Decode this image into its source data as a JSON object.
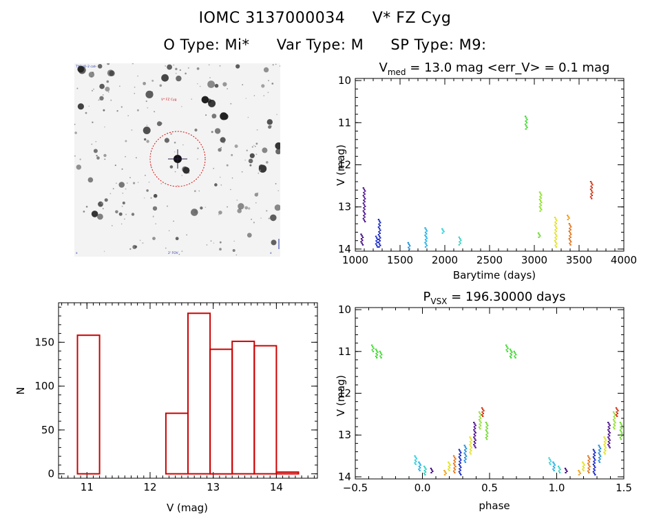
{
  "header": {
    "star_id": "IOMC 3137000034",
    "star_name": "V* FZ Cyg",
    "o_type": "O Type: Mi*",
    "var_type": "Var Type: M",
    "sp_type": "SP Type: M9:"
  },
  "image_panel": {
    "top_left_label": "TYCHO-2 cat",
    "target_label": "V* FZ Cyg",
    "bottom_left_label": "x",
    "bottom_center_label": "2' FOV",
    "bottom_right_label": "x"
  },
  "colors": {
    "hist": "#cc0000",
    "circle": "#d01010",
    "cross": "#2a1a4a"
  },
  "chart_data": [
    {
      "type": "scatter",
      "id": "lightcurve",
      "title_main": "V",
      "title_sub": "med",
      "title_rest": " = 13.0 mag <err_V> = 0.1 mag",
      "xlabel": "Barytime (days)",
      "ylabel": "V (mag)",
      "xlim": [
        1000,
        4000
      ],
      "ylim": [
        14.05,
        9.95
      ],
      "xticks": [
        "1000",
        "1500",
        "2000",
        "2500",
        "3000",
        "3500",
        "4000"
      ],
      "yticks": [
        "10",
        "11",
        "12",
        "13",
        "14"
      ],
      "groups": [
        {
          "x": 1075,
          "y1": 13.65,
          "y2": 13.9,
          "color": "#3a007a"
        },
        {
          "x": 1100,
          "y1": 12.55,
          "y2": 13.35,
          "color": "#4a0d8a"
        },
        {
          "x": 1240,
          "y1": 13.7,
          "y2": 13.95,
          "color": "#1a28c8"
        },
        {
          "x": 1270,
          "y1": 13.3,
          "y2": 13.95,
          "color": "#1020c0"
        },
        {
          "x": 1600,
          "y1": 13.85,
          "y2": 14.0,
          "color": "#1a8ad8"
        },
        {
          "x": 1790,
          "y1": 13.5,
          "y2": 13.95,
          "color": "#20b0e8"
        },
        {
          "x": 1980,
          "y1": 13.52,
          "y2": 13.62,
          "color": "#30d0d8"
        },
        {
          "x": 2170,
          "y1": 13.72,
          "y2": 13.9,
          "color": "#30d0c0"
        },
        {
          "x": 2910,
          "y1": 10.85,
          "y2": 11.15,
          "color": "#40d830"
        },
        {
          "x": 3055,
          "y1": 13.62,
          "y2": 13.72,
          "color": "#70d830"
        },
        {
          "x": 3070,
          "y1": 12.65,
          "y2": 13.1,
          "color": "#90e030"
        },
        {
          "x": 3240,
          "y1": 13.25,
          "y2": 13.95,
          "color": "#e0e020"
        },
        {
          "x": 3380,
          "y1": 13.2,
          "y2": 13.3,
          "color": "#f0a020"
        },
        {
          "x": 3400,
          "y1": 13.4,
          "y2": 13.9,
          "color": "#e07018"
        },
        {
          "x": 3640,
          "y1": 12.4,
          "y2": 12.8,
          "color": "#d03010"
        }
      ]
    },
    {
      "type": "bar",
      "id": "histogram",
      "xlabel": "V (mag)",
      "ylabel": "N",
      "xlim": [
        10.55,
        14.65
      ],
      "ylim": [
        -5,
        195
      ],
      "xticks": [
        "11",
        "12",
        "13",
        "14"
      ],
      "yticks": [
        "0",
        "50",
        "100",
        "150"
      ],
      "bins": [
        {
          "left": 10.85,
          "right": 11.2,
          "value": 158
        },
        {
          "left": 11.2,
          "right": 11.55,
          "value": 0
        },
        {
          "left": 11.55,
          "right": 11.9,
          "value": 0
        },
        {
          "left": 11.9,
          "right": 12.25,
          "value": 0
        },
        {
          "left": 12.25,
          "right": 12.6,
          "value": 69
        },
        {
          "left": 12.6,
          "right": 12.95,
          "value": 183
        },
        {
          "left": 12.95,
          "right": 13.3,
          "value": 142
        },
        {
          "left": 13.3,
          "right": 13.65,
          "value": 151
        },
        {
          "left": 13.65,
          "right": 14.0,
          "value": 146
        },
        {
          "left": 14.0,
          "right": 14.35,
          "value": 2
        }
      ]
    },
    {
      "type": "scatter",
      "id": "phased",
      "title_main": "P",
      "title_sub": "VSX",
      "title_rest": " = 196.30000 days",
      "xlabel": "phase",
      "ylabel": "V (mag)",
      "xlim": [
        -0.5,
        1.5
      ],
      "ylim": [
        14.05,
        9.95
      ],
      "xticks": [
        "−0.5",
        "0.0",
        "0.5",
        "1.0",
        "1.5"
      ],
      "yticks": [
        "10",
        "11",
        "12",
        "13",
        "14"
      ],
      "groups": [
        {
          "x": -0.37,
          "y1": 10.85,
          "y2": 11.0,
          "color": "#40d830"
        },
        {
          "x": -0.34,
          "y1": 10.95,
          "y2": 11.15,
          "color": "#40d830"
        },
        {
          "x": -0.31,
          "y1": 11.0,
          "y2": 11.15,
          "color": "#40d830"
        },
        {
          "x": -0.05,
          "y1": 13.5,
          "y2": 13.7,
          "color": "#30d0d8"
        },
        {
          "x": -0.02,
          "y1": 13.65,
          "y2": 13.85,
          "color": "#20b0e8"
        },
        {
          "x": 0.02,
          "y1": 13.75,
          "y2": 13.95,
          "color": "#30d0c0"
        },
        {
          "x": 0.07,
          "y1": 13.8,
          "y2": 13.9,
          "color": "#3a007a"
        },
        {
          "x": 0.17,
          "y1": 13.85,
          "y2": 13.95,
          "color": "#f0a020"
        },
        {
          "x": 0.2,
          "y1": 13.65,
          "y2": 13.85,
          "color": "#e0e020"
        },
        {
          "x": 0.24,
          "y1": 13.5,
          "y2": 13.9,
          "color": "#e07018"
        },
        {
          "x": 0.28,
          "y1": 13.35,
          "y2": 13.95,
          "color": "#1020c0"
        },
        {
          "x": 0.32,
          "y1": 13.25,
          "y2": 13.65,
          "color": "#1a8ad8"
        },
        {
          "x": 0.36,
          "y1": 13.05,
          "y2": 13.45,
          "color": "#e0e020"
        },
        {
          "x": 0.39,
          "y1": 12.7,
          "y2": 13.3,
          "color": "#4a0d8a"
        },
        {
          "x": 0.43,
          "y1": 12.45,
          "y2": 12.85,
          "color": "#90e030"
        },
        {
          "x": 0.45,
          "y1": 12.35,
          "y2": 12.55,
          "color": "#d03010"
        },
        {
          "x": 0.48,
          "y1": 12.7,
          "y2": 13.1,
          "color": "#70d830"
        },
        {
          "x": 0.63,
          "y1": 10.85,
          "y2": 11.0,
          "color": "#40d830"
        },
        {
          "x": 0.66,
          "y1": 10.95,
          "y2": 11.15,
          "color": "#40d830"
        },
        {
          "x": 0.69,
          "y1": 11.0,
          "y2": 11.15,
          "color": "#40d830"
        },
        {
          "x": 0.95,
          "y1": 13.55,
          "y2": 13.7,
          "color": "#30d0d8"
        },
        {
          "x": 0.98,
          "y1": 13.65,
          "y2": 13.85,
          "color": "#20b0e8"
        },
        {
          "x": 1.02,
          "y1": 13.75,
          "y2": 13.9,
          "color": "#30d0c0"
        },
        {
          "x": 1.07,
          "y1": 13.8,
          "y2": 13.9,
          "color": "#3a007a"
        },
        {
          "x": 1.17,
          "y1": 13.85,
          "y2": 13.95,
          "color": "#f0a020"
        },
        {
          "x": 1.2,
          "y1": 13.65,
          "y2": 13.85,
          "color": "#e0e020"
        },
        {
          "x": 1.24,
          "y1": 13.5,
          "y2": 13.9,
          "color": "#e07018"
        },
        {
          "x": 1.28,
          "y1": 13.35,
          "y2": 13.95,
          "color": "#1020c0"
        },
        {
          "x": 1.32,
          "y1": 13.25,
          "y2": 13.65,
          "color": "#1a8ad8"
        },
        {
          "x": 1.36,
          "y1": 13.05,
          "y2": 13.45,
          "color": "#e0e020"
        },
        {
          "x": 1.39,
          "y1": 12.7,
          "y2": 13.3,
          "color": "#4a0d8a"
        },
        {
          "x": 1.43,
          "y1": 12.45,
          "y2": 12.85,
          "color": "#90e030"
        },
        {
          "x": 1.45,
          "y1": 12.35,
          "y2": 12.55,
          "color": "#d03010"
        },
        {
          "x": 1.48,
          "y1": 12.7,
          "y2": 13.1,
          "color": "#70d830"
        }
      ]
    }
  ]
}
